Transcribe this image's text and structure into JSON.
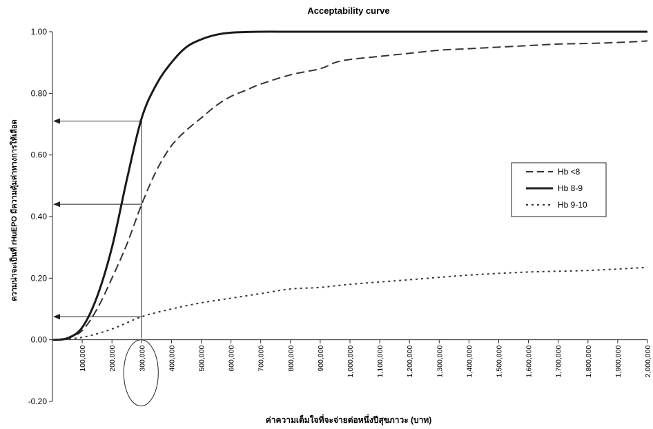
{
  "chart_data": {
    "type": "line",
    "title": "Acceptability curve",
    "xlabel": "ค่าความเต็มใจที่จะจ่ายต่อหนึ่งปีสุขภาวะ (บาท)",
    "ylabel": "ความน่าจะเป็นที่ rHuEPO มีความคุ้มค่าทางการให้เลือด",
    "xlim": [
      0,
      2000000
    ],
    "ylim": [
      -0.2,
      1.0
    ],
    "yticks": [
      -0.2,
      0.0,
      0.2,
      0.4,
      0.6,
      0.8,
      1.0
    ],
    "ytick_labels": [
      "-0.20",
      "0.00",
      "0.20",
      "0.40",
      "0.60",
      "0.80",
      "1.00"
    ],
    "xtick_labels": [
      "100,000",
      "200,000",
      "300,000",
      "400,000",
      "500,000",
      "600,000",
      "700,000",
      "800,000",
      "900,000",
      "1,000,000",
      "1,100,000",
      "1,200,000",
      "1,300,000",
      "1,400,000",
      "1,500,000",
      "1,600,000",
      "1,700,000",
      "1,800,000",
      "1,900,000",
      "2,000,000"
    ],
    "xticks": [
      100000,
      200000,
      300000,
      400000,
      500000,
      600000,
      700000,
      800000,
      900000,
      1000000,
      1100000,
      1200000,
      1300000,
      1400000,
      1500000,
      1600000,
      1700000,
      1800000,
      1900000,
      2000000
    ],
    "legend_position": "right",
    "grid": false,
    "series": [
      {
        "name": "Hb <8",
        "style": "dashed",
        "x": [
          0,
          50000,
          100000,
          150000,
          200000,
          250000,
          300000,
          350000,
          400000,
          450000,
          500000,
          550000,
          600000,
          650000,
          700000,
          800000,
          900000,
          950000,
          1000000,
          1100000,
          1200000,
          1300000,
          1400000,
          1500000,
          1600000,
          1700000,
          1800000,
          1900000,
          2000000
        ],
        "y": [
          0,
          0.005,
          0.03,
          0.1,
          0.2,
          0.31,
          0.44,
          0.55,
          0.63,
          0.68,
          0.72,
          0.76,
          0.79,
          0.81,
          0.83,
          0.86,
          0.88,
          0.9,
          0.91,
          0.92,
          0.93,
          0.94,
          0.945,
          0.95,
          0.955,
          0.96,
          0.962,
          0.965,
          0.97
        ]
      },
      {
        "name": "Hb 8-9",
        "style": "solid",
        "x": [
          0,
          50000,
          100000,
          150000,
          200000,
          250000,
          300000,
          350000,
          400000,
          450000,
          500000,
          550000,
          600000,
          700000,
          800000,
          1000000,
          1500000,
          2000000
        ],
        "y": [
          0,
          0.005,
          0.04,
          0.14,
          0.3,
          0.52,
          0.72,
          0.83,
          0.9,
          0.95,
          0.975,
          0.99,
          0.997,
          1.0,
          1.0,
          1.0,
          1.0,
          1.0
        ]
      },
      {
        "name": "Hb 9-10",
        "style": "dotted",
        "x": [
          0,
          100000,
          200000,
          300000,
          400000,
          500000,
          600000,
          700000,
          800000,
          900000,
          1000000,
          1200000,
          1400000,
          1600000,
          1800000,
          2000000
        ],
        "y": [
          0,
          0.008,
          0.035,
          0.075,
          0.1,
          0.12,
          0.135,
          0.15,
          0.165,
          0.17,
          0.18,
          0.195,
          0.21,
          0.22,
          0.225,
          0.235
        ]
      }
    ],
    "annotations": {
      "threshold_x": 300000,
      "arrow_levels": [
        0.71,
        0.44,
        0.075
      ],
      "circled_tick": "300,000"
    }
  }
}
